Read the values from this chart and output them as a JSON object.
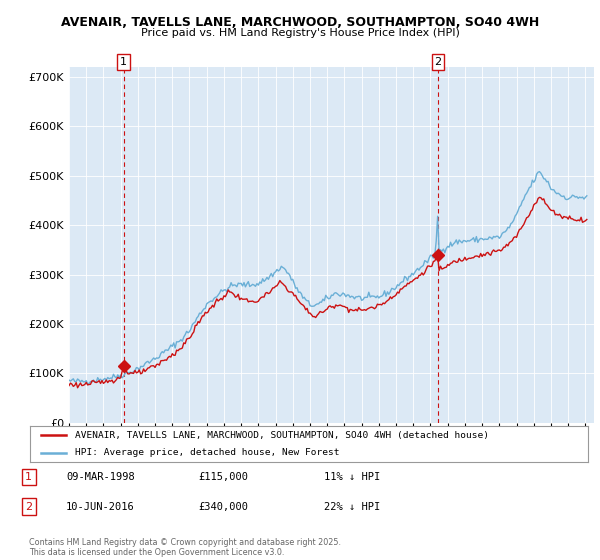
{
  "title_line1": "AVENAIR, TAVELLS LANE, MARCHWOOD, SOUTHAMPTON, SO40 4WH",
  "title_line2": "Price paid vs. HM Land Registry's House Price Index (HPI)",
  "background_color": "#ffffff",
  "plot_bg_color": "#dce9f5",
  "grid_color": "#ffffff",
  "hpi_color": "#6aafd6",
  "price_color": "#cc1111",
  "ylim": [
    0,
    720000
  ],
  "ytick_vals": [
    0,
    100000,
    200000,
    300000,
    400000,
    500000,
    600000,
    700000
  ],
  "ytick_labels": [
    "£0",
    "£100K",
    "£200K",
    "£300K",
    "£400K",
    "£500K",
    "£600K",
    "£700K"
  ],
  "year_start": 1995,
  "year_end": 2025,
  "sale1_year": 1998.18,
  "sale1_price": 115000,
  "sale2_year": 2016.44,
  "sale2_price": 340000,
  "legend_label1": "AVENAIR, TAVELLS LANE, MARCHWOOD, SOUTHAMPTON, SO40 4WH (detached house)",
  "legend_label2": "HPI: Average price, detached house, New Forest",
  "annotation1_date": "09-MAR-1998",
  "annotation1_price": "£115,000",
  "annotation1_pct": "11% ↓ HPI",
  "annotation2_date": "10-JUN-2016",
  "annotation2_price": "£340,000",
  "annotation2_pct": "22% ↓ HPI",
  "footer": "Contains HM Land Registry data © Crown copyright and database right 2025.\nThis data is licensed under the Open Government Licence v3.0."
}
